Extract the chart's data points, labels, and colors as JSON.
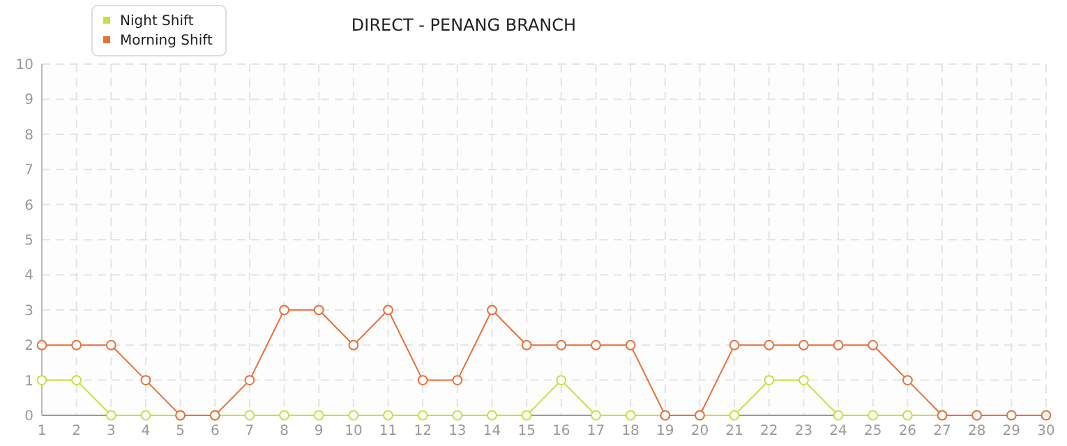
{
  "chart_data": {
    "type": "line",
    "title": "DIRECT - PENANG BRANCH",
    "x": [
      1,
      2,
      3,
      4,
      5,
      6,
      7,
      8,
      9,
      10,
      11,
      12,
      13,
      14,
      15,
      16,
      17,
      18,
      19,
      20,
      21,
      22,
      23,
      24,
      25,
      26,
      27,
      28,
      29,
      30
    ],
    "series": [
      {
        "name": "Night Shift",
        "color": "#c8e03c",
        "values": [
          1,
          1,
          0,
          0,
          0,
          0,
          0,
          0,
          0,
          0,
          0,
          0,
          0,
          0,
          0,
          1,
          0,
          0,
          0,
          0,
          0,
          1,
          1,
          0,
          0,
          0,
          0,
          0,
          null,
          null
        ]
      },
      {
        "name": "Morning Shift",
        "color": "#e8703a",
        "values": [
          2,
          2,
          2,
          1,
          0,
          0,
          1,
          3,
          3,
          2,
          3,
          1,
          1,
          3,
          2,
          2,
          2,
          2,
          0,
          0,
          2,
          2,
          2,
          2,
          2,
          1,
          0,
          0,
          0,
          0
        ]
      }
    ],
    "xlim": [
      1,
      30
    ],
    "xticks": [
      1,
      2,
      3,
      4,
      5,
      6,
      7,
      8,
      9,
      10,
      11,
      12,
      13,
      14,
      15,
      16,
      17,
      18,
      19,
      20,
      21,
      22,
      23,
      24,
      25,
      26,
      27,
      28,
      29,
      30
    ],
    "ylim": [
      0,
      10
    ],
    "yticks": [
      0,
      1,
      2,
      3,
      4,
      5,
      6,
      7,
      8,
      9,
      10
    ],
    "grid": true,
    "legend": "top left",
    "marker": "circle",
    "line_style": "solid"
  }
}
